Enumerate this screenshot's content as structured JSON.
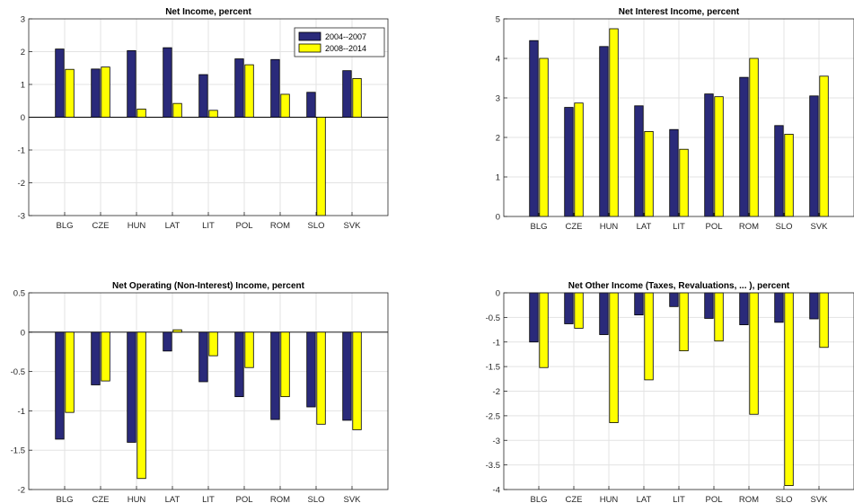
{
  "legend": {
    "entries": [
      {
        "label": "2004--2007",
        "color": "#2a2a7a"
      },
      {
        "label": "2008--2014",
        "color": "#ffff00"
      }
    ]
  },
  "chart_data": [
    {
      "type": "bar",
      "title": "Net Income, percent",
      "categories": [
        "BLG",
        "CZE",
        "HUN",
        "LAT",
        "LIT",
        "POL",
        "ROM",
        "SLO",
        "SVK"
      ],
      "series": [
        {
          "name": "2004--2007",
          "values": [
            2.08,
            1.47,
            2.03,
            2.12,
            1.3,
            1.78,
            1.76,
            0.76,
            1.42
          ]
        },
        {
          "name": "2008--2014",
          "values": [
            1.46,
            1.53,
            0.25,
            0.42,
            0.21,
            1.6,
            0.7,
            -3.0,
            1.18
          ]
        }
      ],
      "ylim": [
        -3,
        3
      ],
      "yticks": [
        "3",
        "2",
        "1",
        "0",
        "-1",
        "-2",
        "-3"
      ],
      "grid": true,
      "legend": "top-right"
    },
    {
      "type": "bar",
      "title": "Net Interest Income, percent",
      "categories": [
        "BLG",
        "CZE",
        "HUN",
        "LAT",
        "LIT",
        "POL",
        "ROM",
        "SLO",
        "SVK"
      ],
      "series": [
        {
          "name": "2004--2007",
          "values": [
            4.45,
            2.76,
            4.3,
            2.8,
            2.2,
            3.1,
            3.52,
            2.3,
            3.05
          ]
        },
        {
          "name": "2008--2014",
          "values": [
            4.0,
            2.87,
            4.75,
            2.15,
            1.7,
            3.03,
            4.0,
            2.08,
            3.55
          ]
        }
      ],
      "ylim": [
        0,
        5
      ],
      "yticks": [
        "5",
        "4",
        "3",
        "2",
        "1",
        "0"
      ],
      "grid": true
    },
    {
      "type": "bar",
      "title": "Net Operating (Non-Interest) Income, percent",
      "categories": [
        "BLG",
        "CZE",
        "HUN",
        "LAT",
        "LIT",
        "POL",
        "ROM",
        "SLO",
        "SVK"
      ],
      "series": [
        {
          "name": "2004--2007",
          "values": [
            -1.36,
            -0.67,
            -1.4,
            -0.24,
            -0.63,
            -0.82,
            -1.11,
            -0.95,
            -1.12
          ]
        },
        {
          "name": "2008--2014",
          "values": [
            -1.02,
            -0.62,
            -1.86,
            0.03,
            -0.3,
            -0.45,
            -0.82,
            -1.17,
            -1.24
          ]
        }
      ],
      "ylim": [
        -2,
        0.5
      ],
      "yticks": [
        "0.5",
        "0",
        "-0.5",
        "-1",
        "-1.5",
        "-2"
      ],
      "grid": true
    },
    {
      "type": "bar",
      "title": "Net Other Income (Taxes, Revaluations, ... ), percent",
      "categories": [
        "BLG",
        "CZE",
        "HUN",
        "LAT",
        "LIT",
        "POL",
        "ROM",
        "SLO",
        "SVK"
      ],
      "series": [
        {
          "name": "2004--2007",
          "values": [
            -1.0,
            -0.63,
            -0.85,
            -0.45,
            -0.28,
            -0.52,
            -0.65,
            -0.6,
            -0.53
          ]
        },
        {
          "name": "2008--2014",
          "values": [
            -1.52,
            -0.72,
            -2.64,
            -1.77,
            -1.18,
            -0.98,
            -2.47,
            -3.92,
            -1.11
          ]
        }
      ],
      "ylim": [
        -4,
        0
      ],
      "yticks": [
        "0",
        "-0.5",
        "-1",
        "-1.5",
        "-2",
        "-2.5",
        "-3",
        "-3.5",
        "-4"
      ],
      "grid": true
    }
  ]
}
